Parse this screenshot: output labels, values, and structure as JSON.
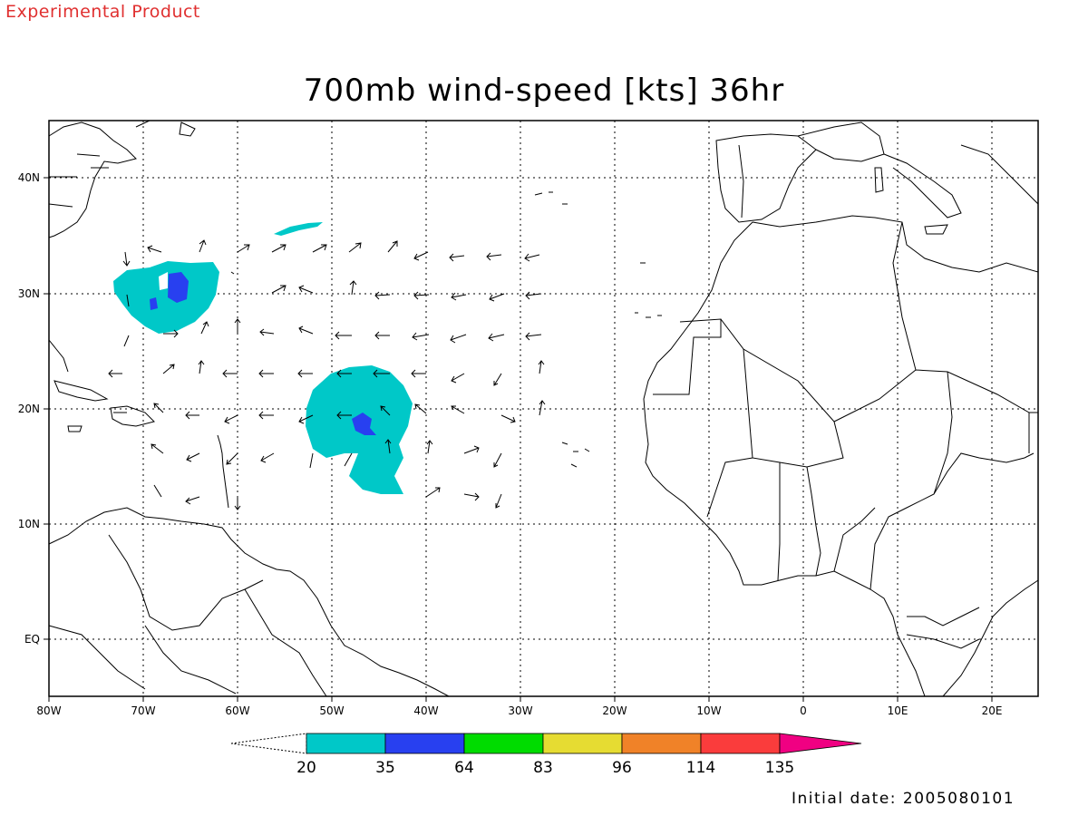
{
  "banner": "Experimental Product",
  "title": "700mb wind-speed [kts] 36hr",
  "initial_date": "Initial date: 2005080101",
  "axes": {
    "lon_labels": [
      "80W",
      "70W",
      "60W",
      "50W",
      "40W",
      "30W",
      "20W",
      "10W",
      "0",
      "10E",
      "20E"
    ],
    "lat_labels": [
      "40N",
      "30N",
      "20N",
      "10N",
      "EQ"
    ]
  },
  "colorbar": {
    "labels": [
      "20",
      "35",
      "64",
      "83",
      "96",
      "114",
      "135"
    ],
    "colors": [
      "#00c8c8",
      "#2840f0",
      "#00dc00",
      "#e6dc32",
      "#f08228",
      "#fa3c3c",
      "#f00082"
    ]
  },
  "colors": {
    "banner": "#e03030",
    "land_outline": "#000000",
    "cyan_fill": "#00c8c8",
    "blue_fill": "#2840f0"
  }
}
